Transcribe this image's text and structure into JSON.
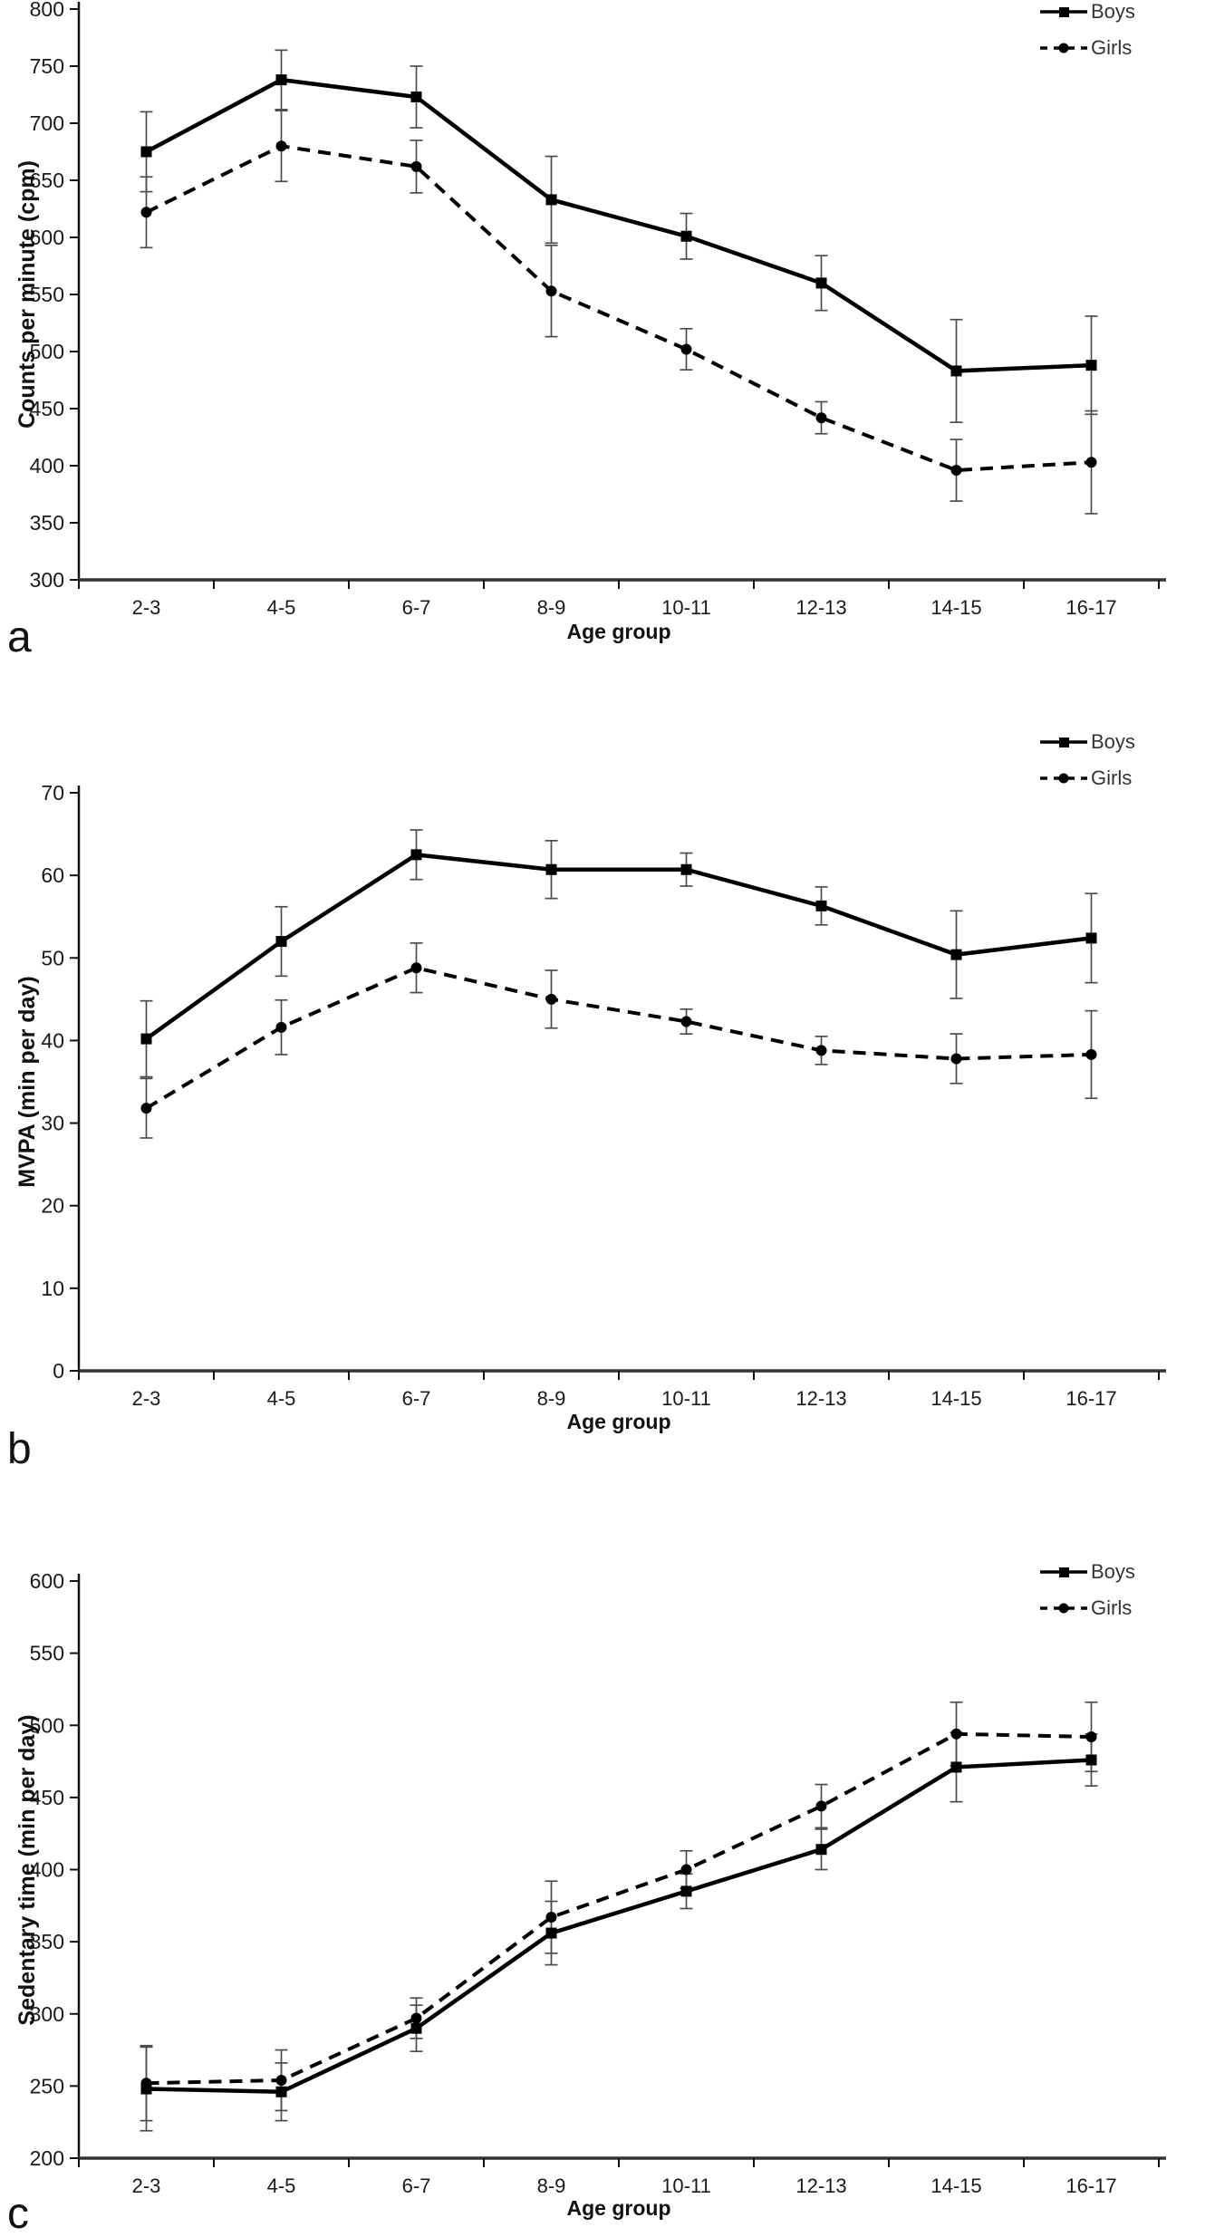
{
  "colors": {
    "series": "#000000",
    "error_bar": "#4d4d4d",
    "text": "#1a1a1a"
  },
  "chart_data": [
    {
      "type": "line",
      "panel_label": "a",
      "xlabel": "Age group",
      "ylabel": "Counts per minute (cpm)",
      "categories": [
        "2-3",
        "4-5",
        "6-7",
        "8-9",
        "10-11",
        "12-13",
        "14-15",
        "16-17"
      ],
      "ylim": [
        300,
        800
      ],
      "ytick_step": 50,
      "grid": false,
      "legend_position": "top-right",
      "series": [
        {
          "name": "Boys",
          "marker": "square",
          "line": "solid",
          "values": [
            675,
            738,
            723,
            633,
            601,
            560,
            483,
            488
          ],
          "errors": [
            35,
            26,
            27,
            38,
            20,
            24,
            45,
            43
          ]
        },
        {
          "name": "Girls",
          "marker": "circle",
          "line": "dashed",
          "values": [
            622,
            680,
            662,
            553,
            502,
            442,
            396,
            403
          ],
          "errors": [
            31,
            31,
            23,
            40,
            18,
            14,
            27,
            45
          ]
        }
      ]
    },
    {
      "type": "line",
      "panel_label": "b",
      "xlabel": "Age group",
      "ylabel": "MVPA (min per day)",
      "categories": [
        "2-3",
        "4-5",
        "6-7",
        "8-9",
        "10-11",
        "12-13",
        "14-15",
        "16-17"
      ],
      "ylim": [
        0,
        70
      ],
      "ytick_step": 10,
      "grid": false,
      "legend_position": "top-right",
      "series": [
        {
          "name": "Boys",
          "marker": "square",
          "line": "solid",
          "values": [
            40.2,
            52.0,
            62.5,
            60.7,
            60.7,
            56.3,
            50.4,
            52.4
          ],
          "errors": [
            4.6,
            4.2,
            3.0,
            3.5,
            2.0,
            2.3,
            5.3,
            5.4
          ]
        },
        {
          "name": "Girls",
          "marker": "circle",
          "line": "dashed",
          "values": [
            31.8,
            41.6,
            48.8,
            45.0,
            42.3,
            38.8,
            37.8,
            38.3
          ],
          "errors": [
            3.6,
            3.3,
            3.0,
            3.5,
            1.5,
            1.7,
            3.0,
            5.3
          ]
        }
      ]
    },
    {
      "type": "line",
      "panel_label": "c",
      "xlabel": "Age group",
      "ylabel": "Sedentary time (min per day)",
      "categories": [
        "2-3",
        "4-5",
        "6-7",
        "8-9",
        "10-11",
        "12-13",
        "14-15",
        "16-17"
      ],
      "ylim": [
        200,
        600
      ],
      "ytick_step": 50,
      "grid": false,
      "legend_position": "top-right",
      "series": [
        {
          "name": "Boys",
          "marker": "square",
          "line": "solid",
          "values": [
            248,
            246,
            290,
            356,
            385,
            414,
            471,
            476
          ],
          "errors": [
            29,
            20,
            16,
            22,
            12,
            14,
            24,
            18
          ]
        },
        {
          "name": "Girls",
          "marker": "circle",
          "line": "dashed",
          "values": [
            252,
            254,
            297,
            367,
            400,
            444,
            494,
            492
          ],
          "errors": [
            26,
            21,
            14,
            25,
            13,
            15,
            22,
            24
          ]
        }
      ]
    }
  ]
}
